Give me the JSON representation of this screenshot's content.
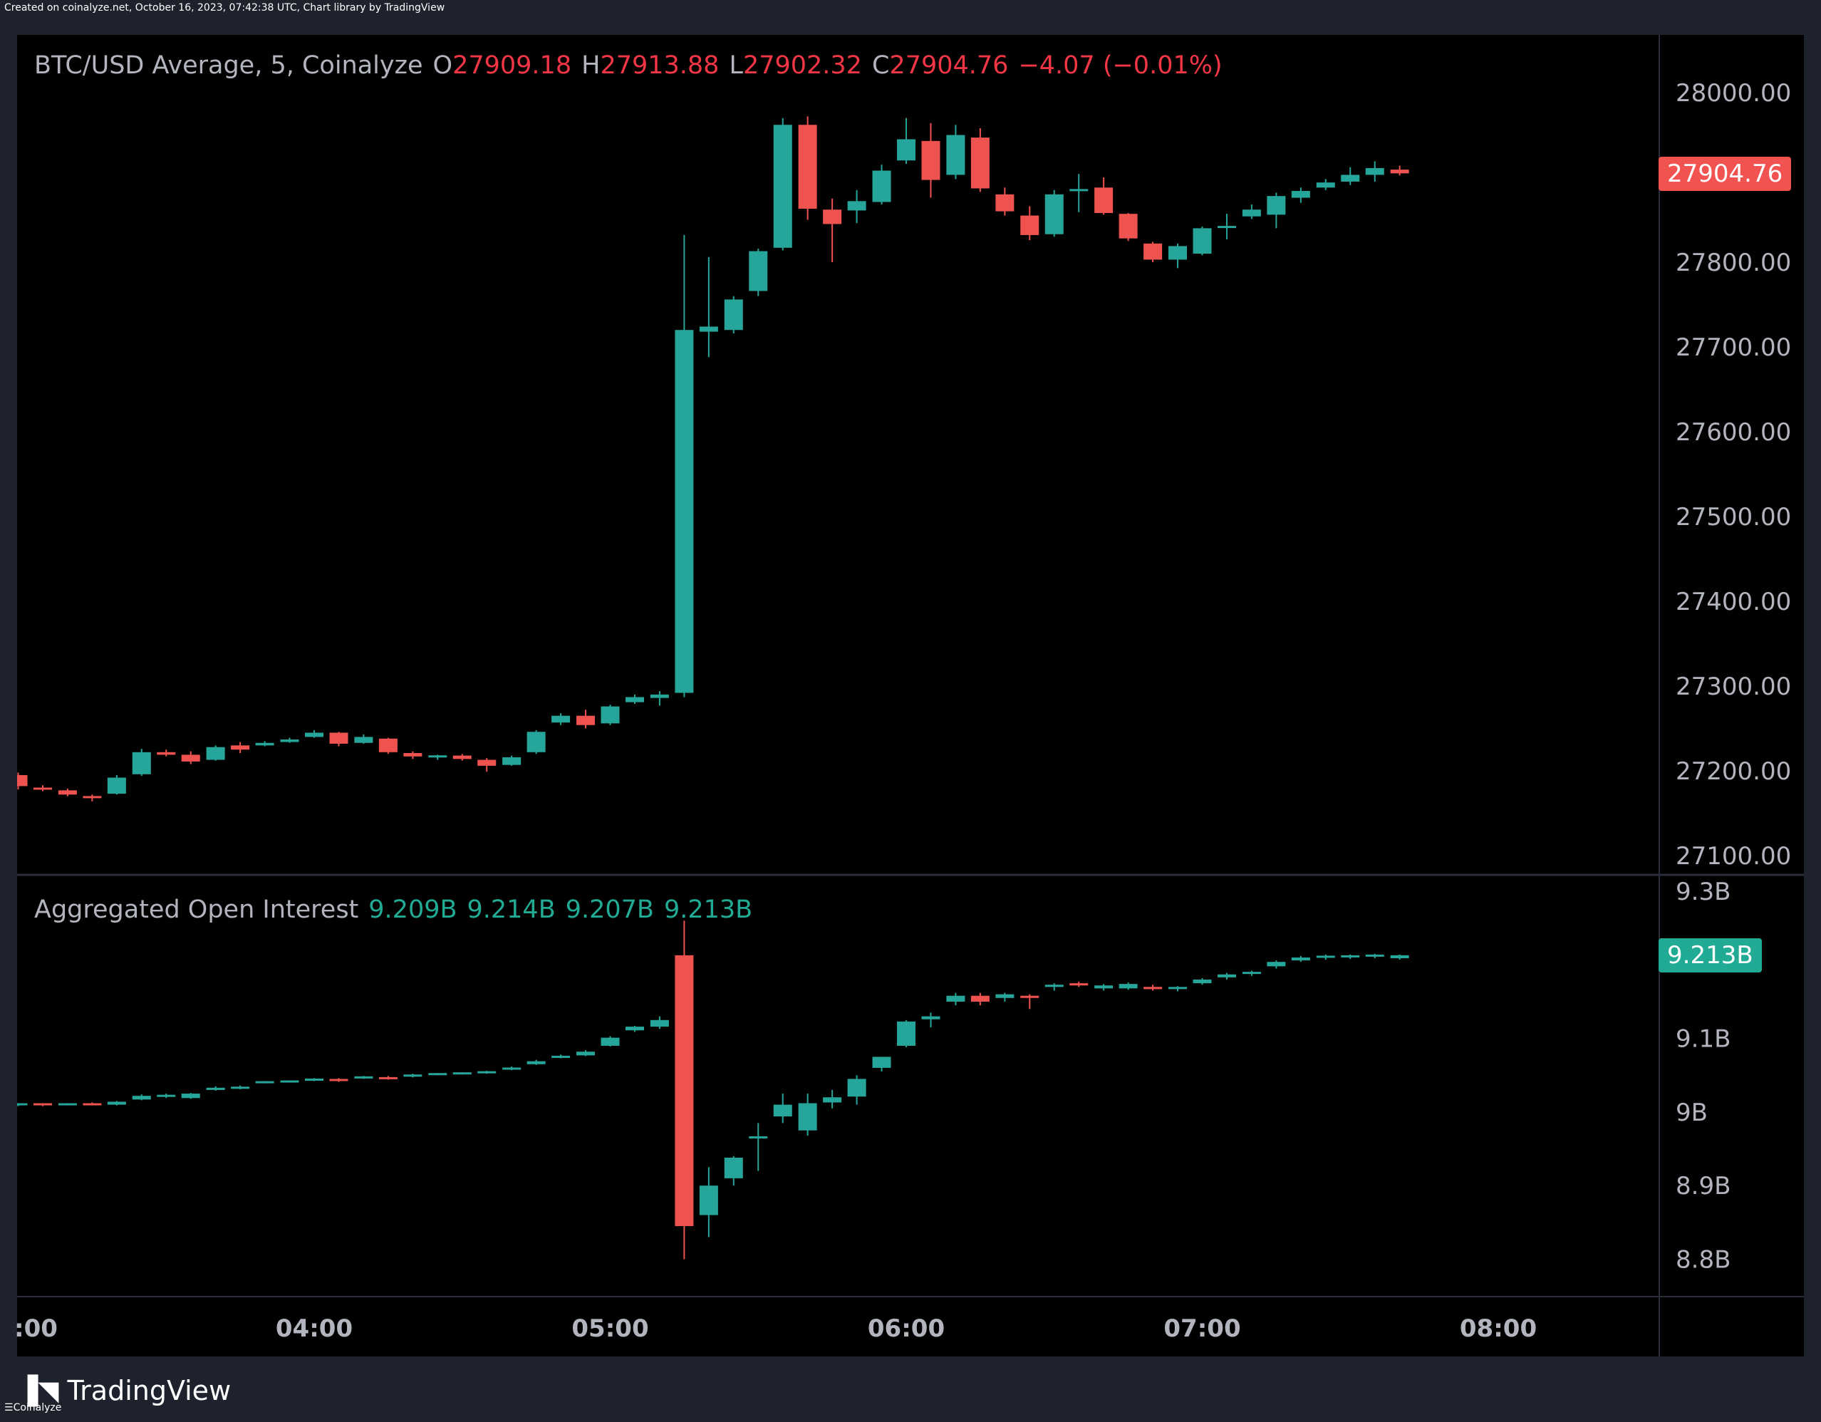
{
  "header_note": "Created on coinalyze.net, October 16, 2023, 07:42:38 UTC, Chart library by TradingView",
  "footer_note": "Coinalyze",
  "brand": "TradingView",
  "colors": {
    "up": "#26a69a",
    "down": "#ef5350",
    "oi_up": "#26a69a",
    "oi_down": "#ef5350",
    "background": "#000000"
  },
  "price_legend": {
    "symbol": "BTC/USD Average, 5, Coinalyze",
    "o_label": "O",
    "o": "27909.18",
    "h_label": "H",
    "h": "27913.88",
    "l_label": "L",
    "l": "27902.32",
    "c_label": "C",
    "c": "27904.76",
    "change": "−4.07 (−0.01%)"
  },
  "oi_legend": {
    "title": "Aggregated Open Interest",
    "v1": "9.209B",
    "v2": "9.214B",
    "v3": "9.207B",
    "v4": "9.213B"
  },
  "price_tag": "27904.76",
  "oi_tag": "9.213B",
  "chart_data": [
    {
      "type": "candlestick",
      "title": "BTC/USD Average, 5, Coinalyze",
      "y_ticks": [
        "28000.00",
        "27800.00",
        "27700.00",
        "27600.00",
        "27500.00",
        "27400.00",
        "27300.00",
        "27200.00",
        "27100.00"
      ],
      "y_tick_values": [
        28000,
        27800,
        27700,
        27600,
        27500,
        27400,
        27300,
        27200,
        27100
      ],
      "ylim": [
        27100,
        28000
      ],
      "x_ticks": [
        ":00",
        "04:00",
        "05:00",
        "06:00",
        "07:00",
        "08:00"
      ],
      "x_tick_hours": [
        3,
        4,
        5,
        6,
        7,
        8
      ],
      "candles": [
        [
          3.0,
          27195,
          27198,
          27178,
          27182
        ],
        [
          3.083,
          27180,
          27183,
          27176,
          27178
        ],
        [
          3.167,
          27177,
          27179,
          27170,
          27172
        ],
        [
          3.25,
          27170,
          27172,
          27164,
          27168
        ],
        [
          3.333,
          27173,
          27195,
          27172,
          27192
        ],
        [
          3.417,
          27196,
          27226,
          27194,
          27222
        ],
        [
          3.5,
          27222,
          27225,
          27217,
          27219
        ],
        [
          3.583,
          27219,
          27223,
          27208,
          27211
        ],
        [
          3.667,
          27213,
          27230,
          27212,
          27228
        ],
        [
          3.75,
          27230,
          27234,
          27221,
          27225
        ],
        [
          3.833,
          27230,
          27235,
          27229,
          27233
        ],
        [
          3.917,
          27234,
          27239,
          27233,
          27237
        ],
        [
          4.0,
          27240,
          27248,
          27239,
          27245
        ],
        [
          4.083,
          27245,
          27246,
          27229,
          27232
        ],
        [
          4.167,
          27233,
          27243,
          27232,
          27240
        ],
        [
          4.25,
          27238,
          27239,
          27220,
          27222
        ],
        [
          4.333,
          27221,
          27223,
          27214,
          27217
        ],
        [
          4.417,
          27216,
          27219,
          27213,
          27218
        ],
        [
          4.5,
          27218,
          27220,
          27212,
          27214
        ],
        [
          4.583,
          27213,
          27215,
          27199,
          27206
        ],
        [
          4.667,
          27207,
          27218,
          27206,
          27216
        ],
        [
          4.75,
          27222,
          27248,
          27220,
          27246
        ],
        [
          4.833,
          27257,
          27268,
          27254,
          27265
        ],
        [
          4.917,
          27265,
          27272,
          27250,
          27254
        ],
        [
          5.0,
          27256,
          27278,
          27254,
          27276
        ],
        [
          5.083,
          27281,
          27290,
          27279,
          27287
        ],
        [
          5.167,
          27286,
          27294,
          27277,
          27290
        ],
        [
          5.25,
          27292,
          27832,
          27287,
          27720
        ],
        [
          5.333,
          27718,
          27806,
          27688,
          27724
        ],
        [
          5.417,
          27720,
          27760,
          27716,
          27756
        ],
        [
          5.5,
          27766,
          27816,
          27760,
          27813
        ],
        [
          5.583,
          27817,
          27970,
          27814,
          27962
        ],
        [
          5.667,
          27962,
          27972,
          27850,
          27863
        ],
        [
          5.75,
          27862,
          27875,
          27800,
          27845
        ],
        [
          5.833,
          27861,
          27885,
          27846,
          27872
        ],
        [
          5.917,
          27871,
          27915,
          27868,
          27908
        ],
        [
          6.0,
          27920,
          27970,
          27916,
          27945
        ],
        [
          6.083,
          27943,
          27964,
          27876,
          27897
        ],
        [
          6.167,
          27903,
          27962,
          27898,
          27950
        ],
        [
          6.25,
          27947,
          27958,
          27883,
          27887
        ],
        [
          6.333,
          27880,
          27888,
          27855,
          27860
        ],
        [
          6.417,
          27855,
          27866,
          27826,
          27832
        ],
        [
          6.5,
          27833,
          27885,
          27830,
          27880
        ],
        [
          6.583,
          27884,
          27904,
          27859,
          27886
        ],
        [
          6.667,
          27888,
          27900,
          27856,
          27858
        ],
        [
          6.75,
          27857,
          27858,
          27825,
          27828
        ],
        [
          6.833,
          27822,
          27824,
          27800,
          27803
        ],
        [
          6.917,
          27803,
          27822,
          27793,
          27819
        ],
        [
          7.0,
          27810,
          27842,
          27808,
          27840
        ],
        [
          7.083,
          27841,
          27857,
          27827,
          27842
        ],
        [
          7.167,
          27854,
          27868,
          27851,
          27862
        ],
        [
          7.25,
          27856,
          27882,
          27840,
          27878
        ],
        [
          7.333,
          27876,
          27888,
          27870,
          27884
        ],
        [
          7.417,
          27888,
          27898,
          27885,
          27894
        ],
        [
          7.5,
          27895,
          27912,
          27891,
          27903
        ],
        [
          7.583,
          27903,
          27919,
          27895,
          27911
        ],
        [
          7.667,
          27909.18,
          27913.88,
          27902.32,
          27904.76
        ]
      ]
    },
    {
      "type": "candlestick",
      "title": "Aggregated Open Interest",
      "y_ticks": [
        "9.3B",
        "9.1B",
        "9B",
        "8.9B",
        "8.8B"
      ],
      "y_tick_values": [
        9.3,
        9.1,
        9.0,
        8.9,
        8.8
      ],
      "ylim": [
        8.8,
        9.3
      ],
      "candles": [
        [
          3.0,
          9.01,
          9.012,
          9.008,
          9.011
        ],
        [
          3.083,
          9.011,
          9.012,
          9.008,
          9.01
        ],
        [
          3.167,
          9.01,
          9.012,
          9.009,
          9.011
        ],
        [
          3.25,
          9.011,
          9.013,
          9.009,
          9.01
        ],
        [
          3.333,
          9.01,
          9.015,
          9.009,
          9.014
        ],
        [
          3.417,
          9.017,
          9.024,
          9.016,
          9.022
        ],
        [
          3.5,
          9.021,
          9.025,
          9.019,
          9.023
        ],
        [
          3.583,
          9.019,
          9.026,
          9.018,
          9.025
        ],
        [
          3.667,
          9.03,
          9.035,
          9.029,
          9.033
        ],
        [
          3.75,
          9.032,
          9.036,
          9.031,
          9.034
        ],
        [
          3.833,
          9.04,
          9.042,
          9.039,
          9.041
        ],
        [
          3.917,
          9.041,
          9.043,
          9.04,
          9.042
        ],
        [
          4.0,
          9.043,
          9.046,
          9.042,
          9.045
        ],
        [
          4.083,
          9.044,
          9.046,
          9.041,
          9.043
        ],
        [
          4.167,
          9.046,
          9.049,
          9.045,
          9.048
        ],
        [
          4.25,
          9.047,
          9.049,
          9.044,
          9.045
        ],
        [
          4.333,
          9.048,
          9.052,
          9.047,
          9.051
        ],
        [
          4.417,
          9.051,
          9.053,
          9.05,
          9.052
        ],
        [
          4.5,
          9.052,
          9.054,
          9.051,
          9.053
        ],
        [
          4.583,
          9.053,
          9.056,
          9.052,
          9.055
        ],
        [
          4.667,
          9.058,
          9.062,
          9.057,
          9.06
        ],
        [
          4.75,
          9.065,
          9.071,
          9.064,
          9.069
        ],
        [
          4.833,
          9.074,
          9.078,
          9.073,
          9.076
        ],
        [
          4.917,
          9.077,
          9.084,
          9.076,
          9.082
        ],
        [
          5.0,
          9.09,
          9.103,
          9.089,
          9.101
        ],
        [
          5.083,
          9.111,
          9.117,
          9.109,
          9.116
        ],
        [
          5.167,
          9.116,
          9.13,
          9.113,
          9.125
        ],
        [
          5.25,
          9.213,
          9.26,
          8.8,
          8.845
        ],
        [
          5.333,
          8.86,
          8.925,
          8.83,
          8.9
        ],
        [
          5.417,
          8.91,
          8.94,
          8.9,
          8.938
        ],
        [
          5.5,
          8.965,
          8.985,
          8.92,
          8.966
        ],
        [
          5.583,
          8.994,
          9.025,
          8.985,
          9.01
        ],
        [
          5.667,
          8.975,
          9.025,
          8.968,
          9.012
        ],
        [
          5.75,
          9.013,
          9.03,
          9.005,
          9.02
        ],
        [
          5.833,
          9.021,
          9.05,
          9.01,
          9.045
        ],
        [
          5.917,
          9.06,
          9.075,
          9.055,
          9.075
        ],
        [
          6.0,
          9.09,
          9.125,
          9.088,
          9.123
        ],
        [
          6.083,
          9.126,
          9.135,
          9.115,
          9.13
        ],
        [
          6.167,
          9.15,
          9.162,
          9.145,
          9.158
        ],
        [
          6.25,
          9.158,
          9.162,
          9.145,
          9.15
        ],
        [
          6.333,
          9.155,
          9.162,
          9.15,
          9.16
        ],
        [
          6.417,
          9.158,
          9.16,
          9.14,
          9.155
        ],
        [
          6.5,
          9.17,
          9.175,
          9.165,
          9.173
        ],
        [
          6.583,
          9.175,
          9.177,
          9.17,
          9.172
        ],
        [
          6.667,
          9.168,
          9.174,
          9.165,
          9.172
        ],
        [
          6.75,
          9.168,
          9.176,
          9.166,
          9.174
        ],
        [
          6.833,
          9.17,
          9.173,
          9.165,
          9.167
        ],
        [
          6.917,
          9.168,
          9.171,
          9.164,
          9.169
        ],
        [
          7.0,
          9.175,
          9.182,
          9.173,
          9.18
        ],
        [
          7.083,
          9.183,
          9.189,
          9.18,
          9.187
        ],
        [
          7.167,
          9.188,
          9.192,
          9.185,
          9.19
        ],
        [
          7.25,
          9.198,
          9.206,
          9.195,
          9.204
        ],
        [
          7.333,
          9.206,
          9.212,
          9.204,
          9.21
        ],
        [
          7.417,
          9.21,
          9.214,
          9.207,
          9.212
        ],
        [
          7.5,
          9.211,
          9.214,
          9.208,
          9.212
        ],
        [
          7.583,
          9.212,
          9.215,
          9.209,
          9.213
        ],
        [
          7.667,
          9.209,
          9.214,
          9.207,
          9.213
        ]
      ]
    }
  ]
}
